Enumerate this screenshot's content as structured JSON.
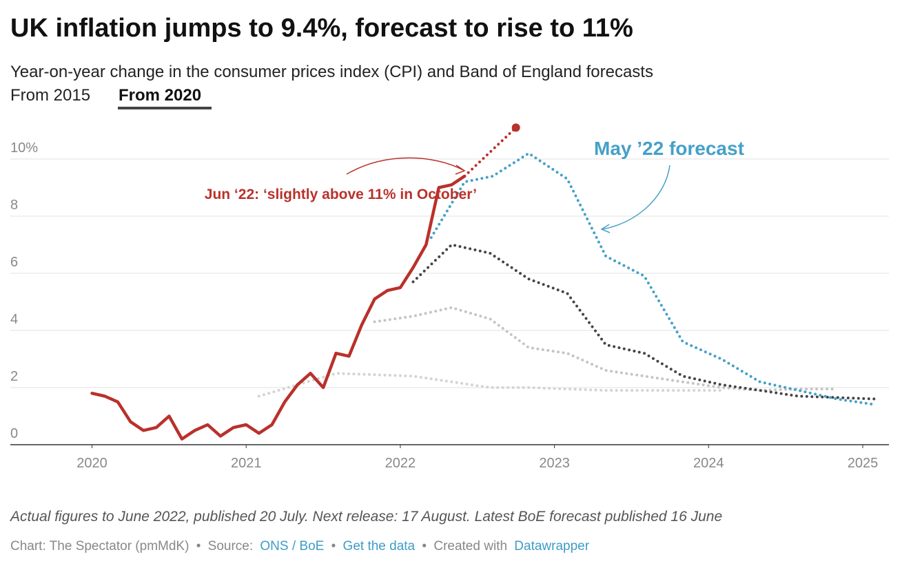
{
  "header": {
    "title": "UK inflation jumps to 9.4%, forecast to rise to 11%",
    "subtitle": "Year-on-year change in the consumer prices index (CPI) and Band of England forecasts",
    "tabs": [
      "From 2015",
      "From 2020"
    ]
  },
  "chart_data": {
    "type": "line",
    "xlim": [
      2019.47,
      2025.17
    ],
    "ylim": [
      0,
      11.5
    ],
    "xticks": [
      2020,
      2021,
      2022,
      2023,
      2024,
      2025
    ],
    "yticks": [
      0,
      2,
      4,
      6,
      8,
      {
        "value": 10,
        "label": "10%"
      }
    ],
    "grid": true,
    "series": [
      {
        "color": "#d3d3d3",
        "dotted": true,
        "x": [
          2021.083,
          2021.583,
          2021.833,
          2022.083,
          2022.333,
          2022.583,
          2022.833,
          2023.083,
          2023.333,
          2023.583,
          2023.833,
          2024.083
        ],
        "values": [
          1.7,
          2.5,
          2.45,
          2.4,
          2.2,
          2.0,
          2.0,
          1.95,
          1.9,
          1.9,
          1.9,
          1.9
        ]
      },
      {
        "color": "#c4c4c4",
        "dotted": true,
        "x": [
          2021.833,
          2022.083,
          2022.333,
          2022.583,
          2022.833,
          2023.083,
          2023.333,
          2023.583,
          2023.833,
          2024.083,
          2024.333,
          2024.583,
          2024.833
        ],
        "values": [
          4.3,
          4.5,
          4.8,
          4.4,
          3.4,
          3.2,
          2.6,
          2.4,
          2.2,
          2.0,
          1.9,
          1.95,
          1.95
        ]
      },
      {
        "color": "#444444",
        "dotted": true,
        "x": [
          2022.083,
          2022.333,
          2022.583,
          2022.833,
          2023.083,
          2023.333,
          2023.583,
          2023.833,
          2024.083,
          2024.333,
          2024.583,
          2024.833,
          2025.083
        ],
        "values": [
          5.7,
          7.0,
          6.7,
          5.8,
          5.3,
          3.5,
          3.2,
          2.4,
          2.1,
          1.9,
          1.7,
          1.65,
          1.6
        ]
      },
      {
        "color": "#45a0c8",
        "dotted": true,
        "x": [
          2022.2,
          2022.417,
          2022.6,
          2022.833,
          2023.083,
          2023.333,
          2023.583,
          2023.833,
          2024.083,
          2024.333,
          2024.583,
          2024.833,
          2025.083
        ],
        "values": [
          7.25,
          9.2,
          9.4,
          10.2,
          9.3,
          6.6,
          5.9,
          3.6,
          3.0,
          2.2,
          1.9,
          1.6,
          1.4
        ]
      },
      {
        "color": "#b9312b",
        "dotted": false,
        "x": [
          2020,
          2020.083,
          2020.167,
          2020.25,
          2020.333,
          2020.417,
          2020.5,
          2020.583,
          2020.667,
          2020.75,
          2020.833,
          2020.917,
          2021,
          2021.083,
          2021.167,
          2021.25,
          2021.333,
          2021.417,
          2021.5,
          2021.583,
          2021.667,
          2021.75,
          2021.833,
          2021.917,
          2022,
          2022.083,
          2022.167,
          2022.25,
          2022.333,
          2022.417
        ],
        "values": [
          1.8,
          1.7,
          1.5,
          0.8,
          0.5,
          0.6,
          1.0,
          0.2,
          0.5,
          0.7,
          0.3,
          0.6,
          0.7,
          0.4,
          0.7,
          1.5,
          2.1,
          2.5,
          2.0,
          3.2,
          3.1,
          4.2,
          5.1,
          5.4,
          5.5,
          6.2,
          7.0,
          9.0,
          9.1,
          9.4
        ]
      },
      {
        "color": "#b9312b",
        "dotted": true,
        "marker": true,
        "x": [
          2022.417,
          2022.75
        ],
        "values": [
          9.4,
          11.1
        ]
      }
    ],
    "annotations": [
      "Jun ‘22: ‘slightly above 11% in October’",
      "May ’22 forecast"
    ]
  },
  "notes": "Actual figures to June 2022, published 20 July. Next release: 17 August. Latest BoE forecast published 16 June",
  "footer": {
    "credit": "Chart: The Spectator (pmMdK)",
    "separator": "•",
    "source_label": "Source:",
    "source": "ONS / BoE",
    "get_data": "Get the data",
    "created_with": "Created with",
    "tool": "Datawrapper"
  }
}
